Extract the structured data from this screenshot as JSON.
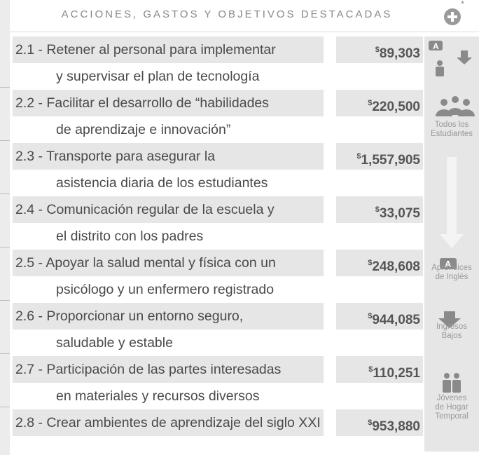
{
  "header": {
    "title": "ACCIONES, GASTOS Y OBJETIVOS DESTACADAS",
    "note_mark": "*"
  },
  "items": [
    {
      "line1": "2.1 - Retener al personal para implementar",
      "line2": "y supervisar el plan de tecnología",
      "currency": "$",
      "amount": "89,303"
    },
    {
      "line1": "2.2 - Facilitar el desarrollo de “habilidades",
      "line2": "de aprendizaje e innovación”",
      "currency": "$",
      "amount": "220,500"
    },
    {
      "line1": "2.3 - Transporte para asegurar la",
      "line2": "asistencia diaria de los estudiantes",
      "currency": "$",
      "amount": "1,557,905"
    },
    {
      "line1": "2.4 - Comunicación regular de la escuela y",
      "line2": "el distrito con los padres",
      "currency": "$",
      "amount": "33,075"
    },
    {
      "line1": "2.5 - Apoyar la salud mental y física con un",
      "line2": "psicólogo y un enfermero registrado",
      "currency": "$",
      "amount": "248,608"
    },
    {
      "line1": "2.6 - Proporcionar un entorno seguro,",
      "line2": "saludable y estable",
      "currency": "$",
      "amount": "944,085"
    },
    {
      "line1": "2.7 - Participación de las partes interesadas",
      "line2": "en materiales y recursos diversos",
      "currency": "$",
      "amount": "110,251"
    },
    {
      "line1": "2.8 - Crear ambientes de aprendizaje del siglo XXI",
      "currency": "$",
      "amount": "953,880"
    }
  ],
  "groups": [
    {
      "label": [
        "Todos los",
        "Estudiantes"
      ]
    },
    {
      "label": [
        "Aprendices",
        "de Inglés"
      ]
    },
    {
      "label": [
        "Ingresos",
        "Bajos"
      ]
    },
    {
      "label": [
        "Jóvenes",
        "de Hogar",
        "Temporal"
      ]
    }
  ]
}
